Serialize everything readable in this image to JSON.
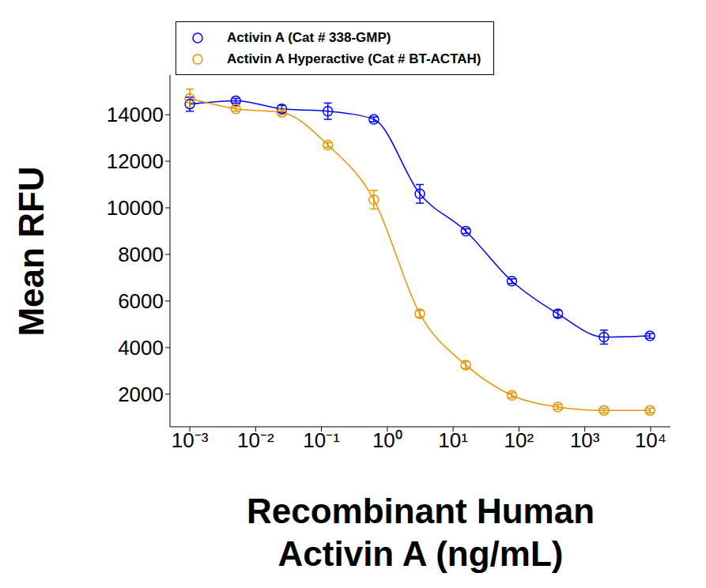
{
  "chart_data": {
    "type": "line",
    "x_label": "Recombinant Human Activin A (ng/mL)",
    "y_label": "Mean RFU",
    "log": "x",
    "legend": "top",
    "xlim": [
      0.0005,
      20000
    ],
    "ylim": [
      600,
      15700
    ],
    "xticks": [
      {
        "value": 0.001,
        "label": "10⁻³"
      },
      {
        "value": 0.01,
        "label": "10⁻²"
      },
      {
        "value": 0.1,
        "label": "10⁻¹"
      },
      {
        "value": 1,
        "label": "10⁰"
      },
      {
        "value": 10,
        "label": "10¹"
      },
      {
        "value": 100,
        "label": "10²"
      },
      {
        "value": 1000,
        "label": "10³"
      },
      {
        "value": 10000,
        "label": "10⁴"
      }
    ],
    "yticks": [
      2000,
      4000,
      6000,
      8000,
      10000,
      12000,
      14000
    ],
    "x": [
      0.001,
      0.005,
      0.025,
      0.125,
      0.625,
      3.125,
      15.625,
      78.125,
      390.625,
      1953.125,
      9765.625
    ],
    "series": [
      {
        "name": "Activin A (Cat # 338-GMP)",
        "color": "#0000ff",
        "marker": "circle",
        "line_style": "solid",
        "values": [
          14450,
          14600,
          14250,
          14150,
          13800,
          10600,
          9000,
          6850,
          5450,
          4450,
          4500
        ],
        "errors": [
          300,
          100,
          150,
          350,
          100,
          400,
          100,
          100,
          150,
          300,
          100
        ]
      },
      {
        "name": "Activin A Hyperactive (Cat # BT-ACTAH)",
        "color": "#e69500",
        "marker": "circle",
        "line_style": "solid",
        "values": [
          14700,
          14250,
          14100,
          12700,
          10350,
          5450,
          3250,
          1950,
          1450,
          1300,
          1300
        ],
        "errors": [
          400,
          100,
          100,
          100,
          400,
          150,
          150,
          100,
          100,
          100,
          100
        ]
      }
    ]
  }
}
